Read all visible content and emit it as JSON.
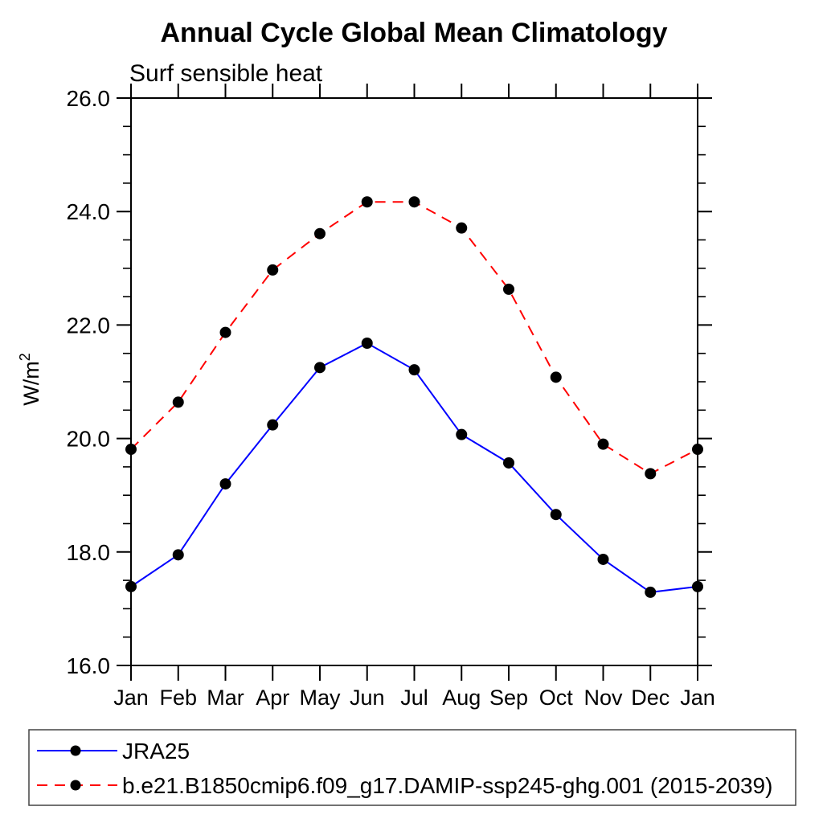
{
  "page": {
    "background_color": "#ffffff"
  },
  "chart_data": {
    "type": "line",
    "title": "Annual Cycle Global Mean Climatology",
    "subtitle": "Surf sensible heat",
    "ylabel_main": "W/m",
    "ylabel_sup": "2",
    "x_tick_labels": [
      "Jan",
      "Feb",
      "Mar",
      "Apr",
      "May",
      "Jun",
      "Jul",
      "Aug",
      "Sep",
      "Oct",
      "Nov",
      "Dec",
      "Jan"
    ],
    "y_ticks": [
      26,
      24,
      22,
      20,
      18,
      16
    ],
    "y_tick_labels": [
      "26.0",
      "24.0",
      "22.0",
      "20.0",
      "18.0",
      "16.0"
    ],
    "y_minor_step": 0.5,
    "ylim": [
      16,
      26
    ],
    "grid": false,
    "legend_position": "bottom-left-box",
    "axis_color": "#000000",
    "marker": "filled-circle",
    "marker_color": "#000000",
    "series": [
      {
        "name": "JRA25",
        "color": "#0000ff",
        "line_style": "solid",
        "values": [
          17.39,
          17.95,
          19.2,
          20.24,
          21.25,
          21.68,
          21.21,
          20.07,
          19.57,
          18.66,
          17.87,
          17.29,
          17.39
        ]
      },
      {
        "name": "b.e21.B1850cmip6.f09_g17.DAMIP-ssp245-ghg.001 (2015-2039)",
        "color": "#ff0000",
        "line_style": "dashed",
        "values": [
          19.81,
          20.64,
          21.87,
          22.97,
          23.61,
          24.17,
          24.17,
          23.71,
          22.63,
          21.08,
          19.9,
          19.38,
          19.81
        ]
      }
    ]
  }
}
